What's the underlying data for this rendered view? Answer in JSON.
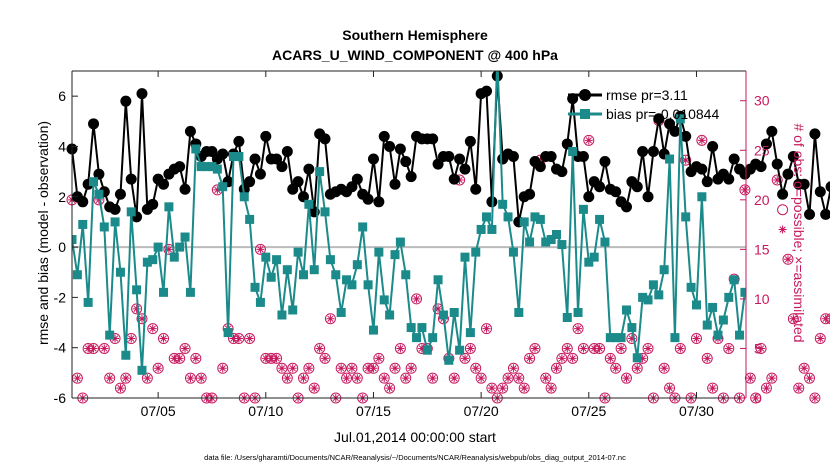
{
  "chart_data": {
    "type": "line",
    "title": "Southern Hemisphere",
    "subtitle": "ACARS_U_WIND_COMPONENT @ 400 hPa",
    "xlabel": "Jul.01,2014 00:00:00 start",
    "ylabel": "rmse and bias (model - observation)",
    "y2label": "# of obs: o=possible; ×=assimilated",
    "footnote": "data file: /Users/gharamti/Documents/NCAR/Reanalysis/~/Documents/NCAR/Reanalysis/webpub/obs_diag_output_2014-07.nc",
    "xlim": [
      1,
      32.3
    ],
    "ylim": [
      -6,
      7
    ],
    "y2lim": [
      0,
      33
    ],
    "xticks": [
      5,
      10,
      15,
      20,
      25,
      30
    ],
    "xticklabels": [
      "07/05",
      "07/10",
      "07/15",
      "07/20",
      "07/25",
      "07/30"
    ],
    "yticks": [
      -6,
      -4,
      -2,
      0,
      2,
      4,
      6
    ],
    "yticklabels": [
      "-6",
      "-4",
      "-2",
      "0",
      "2",
      "4",
      "6"
    ],
    "y2ticks": [
      0,
      5,
      10,
      15,
      20,
      25,
      30
    ],
    "y2ticklabels": [
      "0",
      "5",
      "10",
      "15",
      "20",
      "25",
      "30"
    ],
    "legend_position": "top-right",
    "colors": {
      "rmse": "#000000",
      "bias": "#1b8a8a",
      "obs": "#c8195f",
      "zero_line": "#bbbbbb",
      "axis": "#222222"
    },
    "series": [
      {
        "name": "rmse pr=3.11",
        "axis": "left",
        "marker": "circle",
        "x_start": 1.0,
        "x_step": 0.25,
        "values": [
          3.9,
          2.0,
          1.8,
          2.5,
          4.9,
          2.9,
          2.2,
          1.6,
          1.5,
          2.1,
          5.8,
          2.7,
          1.2,
          6.1,
          1.5,
          1.7,
          2.7,
          2.5,
          2.9,
          3.1,
          3.2,
          2.3,
          4.6,
          4.1,
          3.6,
          3.8,
          3.8,
          3.5,
          3.7,
          2.6,
          3.7,
          4.2,
          2.3,
          2.6,
          3.5,
          2.9,
          4.4,
          3.5,
          3.5,
          3.2,
          3.8,
          2.3,
          2.6,
          2.0,
          3.1,
          1.4,
          4.5,
          4.3,
          2.1,
          2.2,
          2.3,
          2.2,
          2.4,
          2.7,
          2.1,
          1.9,
          3.5,
          1.8,
          4.4,
          4.0,
          2.5,
          3.9,
          3.4,
          2.8,
          4.4,
          4.3,
          4.3,
          4.3,
          3.3,
          3.6,
          3.6,
          2.7,
          3.5,
          3.1,
          4.2,
          2.3,
          6.1,
          6.2,
          1.8,
          6.8,
          3.5,
          3.7,
          3.6,
          1.0,
          2.0,
          2.1,
          3.4,
          3.2,
          3.6,
          3.6,
          3.1,
          3.0,
          4.1,
          5.9,
          3.6,
          3.6,
          2.0,
          2.6,
          2.4,
          3.4,
          2.3,
          2.2,
          1.8,
          1.6,
          2.6,
          2.4,
          3.8,
          2.0,
          3.8,
          5.1,
          3.7,
          4.9,
          4.6,
          5.2,
          4.4,
          3.0,
          3.2,
          3.1,
          2.6,
          4.0,
          2.7,
          2.9,
          2.7,
          3.5,
          3.1,
          2.9,
          3.1,
          3.3,
          3.2,
          4.1,
          4.6,
          3.3,
          2.1,
          2.9,
          3.6,
          2.5,
          2.5,
          1.3,
          4.5,
          2.2,
          1.3,
          2.4
        ]
      },
      {
        "name": "bias pr=-0.010844",
        "axis": "left",
        "marker": "square",
        "x_start": 1.0,
        "x_step": 0.25,
        "values": [
          0.3,
          -1.1,
          0.9,
          -2.2,
          2.6,
          2.1,
          0.8,
          -3.5,
          1.0,
          -1.0,
          -4.3,
          1.4,
          -1.7,
          -4.9,
          -0.6,
          -0.5,
          0.0,
          -1.8,
          1.6,
          -0.4,
          0.0,
          0.4,
          -1.8,
          3.9,
          3.2,
          3.2,
          3.2,
          3.1,
          2.4,
          -3.4,
          3.6,
          3.6,
          2.0,
          1.1,
          -1.6,
          -2.2,
          -0.4,
          -1.2,
          -0.5,
          -2.7,
          -0.9,
          -2.5,
          -0.2,
          -1.1,
          1.7,
          -0.9,
          3.0,
          1.4,
          -0.5,
          -1.1,
          -2.6,
          -1.3,
          -1.5,
          -0.7,
          0.8,
          -1.5,
          -3.3,
          -0.2,
          -2.1,
          -2.7,
          -0.3,
          0.2,
          -1.1,
          -3.2,
          -3.6,
          -3.2,
          -4.1,
          -3.6,
          -1.3,
          -2.7,
          -4.5,
          -2.6,
          -4.1,
          -0.4,
          -3.4,
          -0.2,
          0.7,
          1.2,
          0.7,
          7.6,
          1.7,
          1.2,
          -0.2,
          -2.6,
          1.0,
          0.2,
          1.2,
          1.1,
          0.2,
          0.3,
          0.5,
          0.1,
          -2.8,
          3.8,
          -2.6,
          1.5,
          -0.6,
          -0.4,
          1.1,
          0.2,
          -3.6,
          -3.6,
          -3.6,
          -2.5,
          -3.2,
          -4.4,
          -2.0,
          -2.1,
          -1.5,
          -1.9,
          -0.9,
          3.5,
          -3.6,
          5.1,
          1.2,
          -1.6,
          -2.3,
          2.0,
          -3.1,
          -2.4,
          -3.5,
          -2.9,
          -2.0,
          -1.3,
          -3.5,
          -1.8,
          -1.9,
          -3.1,
          -1.5,
          -1.8,
          -4.4,
          2.0,
          -1.2,
          -0.3,
          0.3,
          -0.5,
          -1.2,
          -0.8,
          -0.1,
          0.2,
          -0.6,
          -1.7
        ]
      },
      {
        "name": "obs possible",
        "axis": "right",
        "marker": "circle-open",
        "x_start": 1.0,
        "x_step": 0.25,
        "values": [
          20,
          2,
          0,
          5,
          5,
          20,
          5,
          2,
          6,
          1,
          2,
          6,
          9,
          8,
          2,
          7,
          3,
          6,
          15,
          4,
          4,
          5,
          2,
          4,
          2,
          0,
          0,
          21,
          3,
          7,
          6,
          6,
          0,
          6,
          0,
          15,
          4,
          4,
          4,
          3,
          2,
          3,
          0,
          2,
          3,
          1,
          5,
          4,
          8,
          0,
          3,
          2,
          3,
          2,
          0,
          3,
          3,
          4,
          2,
          1,
          3,
          5,
          2,
          3,
          10,
          5,
          5,
          2,
          9,
          8,
          4,
          2,
          22,
          4,
          5,
          3,
          2,
          7,
          1,
          0,
          1,
          2,
          3,
          2,
          1,
          4,
          5,
          24,
          2,
          1,
          3,
          4,
          5,
          4,
          7,
          5,
          26,
          5,
          5,
          0,
          4,
          3,
          5,
          2,
          6,
          3,
          4,
          5,
          0,
          28,
          3,
          1,
          0,
          5,
          24,
          0,
          6,
          26,
          4,
          1,
          6,
          0,
          5,
          12,
          0,
          21,
          2,
          0,
          5,
          1,
          2,
          22,
          19,
          14,
          8,
          1,
          3,
          2,
          0,
          6,
          8,
          8
        ]
      },
      {
        "name": "obs assimilated",
        "axis": "right",
        "marker": "asterisk",
        "x_start": 1.0,
        "x_step": 0.25,
        "values": [
          20,
          2,
          0,
          5,
          5,
          20,
          5,
          2,
          6,
          1,
          2,
          6,
          9,
          8,
          2,
          7,
          3,
          6,
          15,
          4,
          4,
          5,
          2,
          4,
          2,
          0,
          0,
          21,
          3,
          7,
          6,
          6,
          0,
          6,
          0,
          15,
          4,
          4,
          4,
          3,
          2,
          3,
          0,
          2,
          3,
          1,
          5,
          4,
          8,
          0,
          3,
          2,
          3,
          2,
          0,
          3,
          3,
          4,
          2,
          1,
          3,
          5,
          2,
          3,
          10,
          5,
          5,
          2,
          9,
          8,
          4,
          2,
          22,
          4,
          5,
          3,
          2,
          7,
          1,
          0,
          1,
          2,
          3,
          2,
          1,
          4,
          5,
          24,
          2,
          1,
          3,
          4,
          5,
          4,
          7,
          5,
          26,
          5,
          5,
          0,
          4,
          3,
          5,
          2,
          6,
          3,
          4,
          5,
          0,
          28,
          3,
          1,
          0,
          5,
          24,
          0,
          6,
          26,
          4,
          1,
          6,
          0,
          5,
          12,
          0,
          21,
          2,
          0,
          5,
          1,
          2,
          22,
          17,
          14,
          8,
          1,
          3,
          2,
          0,
          6,
          8,
          8
        ]
      }
    ],
    "legend": [
      "rmse pr=3.11",
      "bias pr=-0.010844"
    ]
  }
}
